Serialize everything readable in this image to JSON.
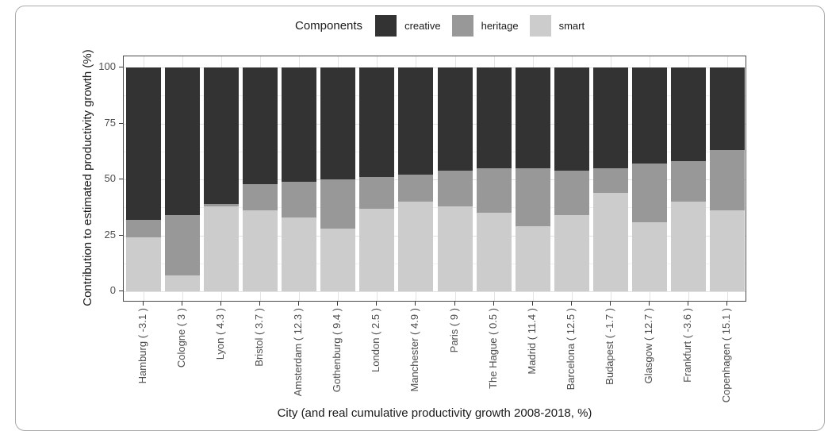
{
  "legend": {
    "title": "Components",
    "items": [
      {
        "label": "creative",
        "color": "#333333"
      },
      {
        "label": "heritage",
        "color": "#989898"
      },
      {
        "label": "smart",
        "color": "#cccccc"
      }
    ]
  },
  "chart_data": {
    "type": "bar",
    "stacked": true,
    "stacked_to_100_percent": true,
    "title": "",
    "xlabel": "City (and real cumulative productivity growth 2008-2018, %)",
    "ylabel": "Contribution to estimated productivity growth (%)",
    "ylim": [
      0,
      100
    ],
    "yticks": [
      0,
      25,
      50,
      75,
      100
    ],
    "yticks_minor": [
      12.5,
      37.5,
      62.5,
      87.5
    ],
    "grid": true,
    "legend_position": "top-center",
    "categories": [
      {
        "city": "Hamburg",
        "growth": -3.1,
        "label": "Hamburg ( -3.1 )"
      },
      {
        "city": "Cologne",
        "growth": 3,
        "label": "Cologne ( 3 )"
      },
      {
        "city": "Lyon",
        "growth": 4.3,
        "label": "Lyon ( 4.3 )"
      },
      {
        "city": "Bristol",
        "growth": 3.7,
        "label": "Bristol ( 3.7 )"
      },
      {
        "city": "Amsterdam",
        "growth": 12.3,
        "label": "Amsterdam ( 12.3 )"
      },
      {
        "city": "Gothenburg",
        "growth": 9.4,
        "label": "Gothenburg ( 9.4 )"
      },
      {
        "city": "London",
        "growth": 2.5,
        "label": "London ( 2.5 )"
      },
      {
        "city": "Manchester",
        "growth": 4.9,
        "label": "Manchester ( 4.9 )"
      },
      {
        "city": "Paris",
        "growth": 9,
        "label": "Paris ( 9 )"
      },
      {
        "city": "The Hague",
        "growth": 0.5,
        "label": "The Hague ( 0.5 )"
      },
      {
        "city": "Madrid",
        "growth": 11.4,
        "label": "Madrid ( 11.4 )"
      },
      {
        "city": "Barcelona",
        "growth": 12.5,
        "label": "Barcelona ( 12.5 )"
      },
      {
        "city": "Budapest",
        "growth": -1.7,
        "label": "Budapest ( -1.7 )"
      },
      {
        "city": "Glasgow",
        "growth": 12.7,
        "label": "Glasgow ( 12.7 )"
      },
      {
        "city": "Frankfurt",
        "growth": -3.6,
        "label": "Frankfurt ( -3.6 )"
      },
      {
        "city": "Copenhagen",
        "growth": 15.1,
        "label": "Copenhagen ( 15.1 )"
      }
    ],
    "series": [
      {
        "name": "smart",
        "color": "#cccccc",
        "values": [
          24,
          7,
          38,
          36,
          33,
          28,
          37,
          40,
          38,
          35,
          29,
          34,
          44,
          31,
          40,
          36
        ]
      },
      {
        "name": "heritage",
        "color": "#989898",
        "values": [
          8,
          27,
          1,
          12,
          16,
          22,
          14,
          12,
          16,
          20,
          26,
          20,
          11,
          26,
          18,
          27
        ]
      },
      {
        "name": "creative",
        "color": "#333333",
        "values": [
          68,
          66,
          61,
          52,
          51,
          50,
          49,
          48,
          46,
          45,
          45,
          46,
          45,
          43,
          42,
          37
        ]
      }
    ]
  }
}
